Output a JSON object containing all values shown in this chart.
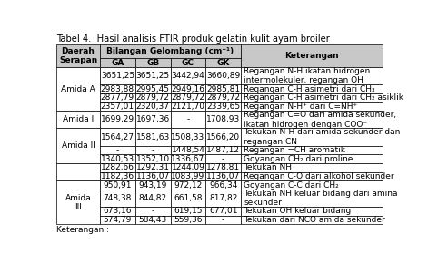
{
  "title": "Tabel 4.  Hasil analisis FTIR produk gelatin kulit ayam broiler",
  "rows": [
    [
      "Amida A",
      "3651,25",
      "3651,25",
      "3442,94",
      "3660,89",
      "Regangan N-H ikatan hidrogen\nintermolekuler, regangan OH"
    ],
    [
      "",
      "2983,88",
      "2995,45",
      "2949,16",
      "2985,81",
      "Regangan C-H asimetri dari CH₃"
    ],
    [
      "",
      "2877,79",
      "2879,72",
      "2879,72",
      "2879,72",
      "Regangan C-H asimetri dari CH₂ asiklik"
    ],
    [
      "",
      "2357,01",
      "2320,37",
      "2121,70",
      "2339,65",
      "Regangan N-H⁺ dari C=NH⁺"
    ],
    [
      "Amida I",
      "1699,29",
      "1697,36",
      "-",
      "1708,93",
      "Regangan C=O dari amida sekunder,\nikatan hidrogen dengan COO⁻"
    ],
    [
      "Amida II",
      "1564,27",
      "1581,63",
      "1508,33",
      "1566,20",
      "Tekukan N-H dari amida sekunder dan\nregangan CN"
    ],
    [
      "",
      "-",
      "-",
      "1448,54",
      "1487,12",
      "Regangan =CH aromatik"
    ],
    [
      "",
      "1340,53",
      "1352,10",
      "1336,67",
      "-",
      "Goyangan CH₂ dari proline"
    ],
    [
      "",
      "1282,66",
      "1292,31",
      "1244,09",
      "1278,81",
      "Tekukan NH"
    ],
    [
      "",
      "1182,36",
      "1136,07",
      "1083,99",
      "1136,07",
      "Regangan C-O dari alkohol sekunder"
    ],
    [
      "Amida\nIII",
      "950,91",
      "943,19",
      "972,12",
      "966,34",
      "Goyangan C-C dari CH₂"
    ],
    [
      "",
      "748,38",
      "844,82",
      "661,58",
      "817,82",
      "Tekukan NH keluar bidang dari amina\nsekunder"
    ],
    [
      "",
      "673,16",
      "-",
      "619,15",
      "677,01",
      "Tekukan OH keluar bidang"
    ],
    [
      "",
      "574,79",
      "584,43",
      "559,36",
      "-",
      "Tekukan dari NCO amida sekunder"
    ]
  ],
  "footer": "Keterangan :",
  "merge_col0": {
    "0": [
      4,
      "Amida A"
    ],
    "4": [
      1,
      "Amida I"
    ],
    "5": [
      3,
      "Amida II"
    ],
    "8": [
      2,
      ""
    ],
    "10": [
      4,
      "Amida\nIII"
    ]
  },
  "row_heights_rel": [
    2.0,
    1.0,
    1.0,
    1.0,
    2.0,
    2.0,
    1.0,
    1.0,
    1.0,
    1.0,
    1.0,
    2.0,
    1.0,
    1.0
  ],
  "header_bg": "#c8c8c8",
  "font_size": 6.5,
  "title_font_size": 7.2
}
